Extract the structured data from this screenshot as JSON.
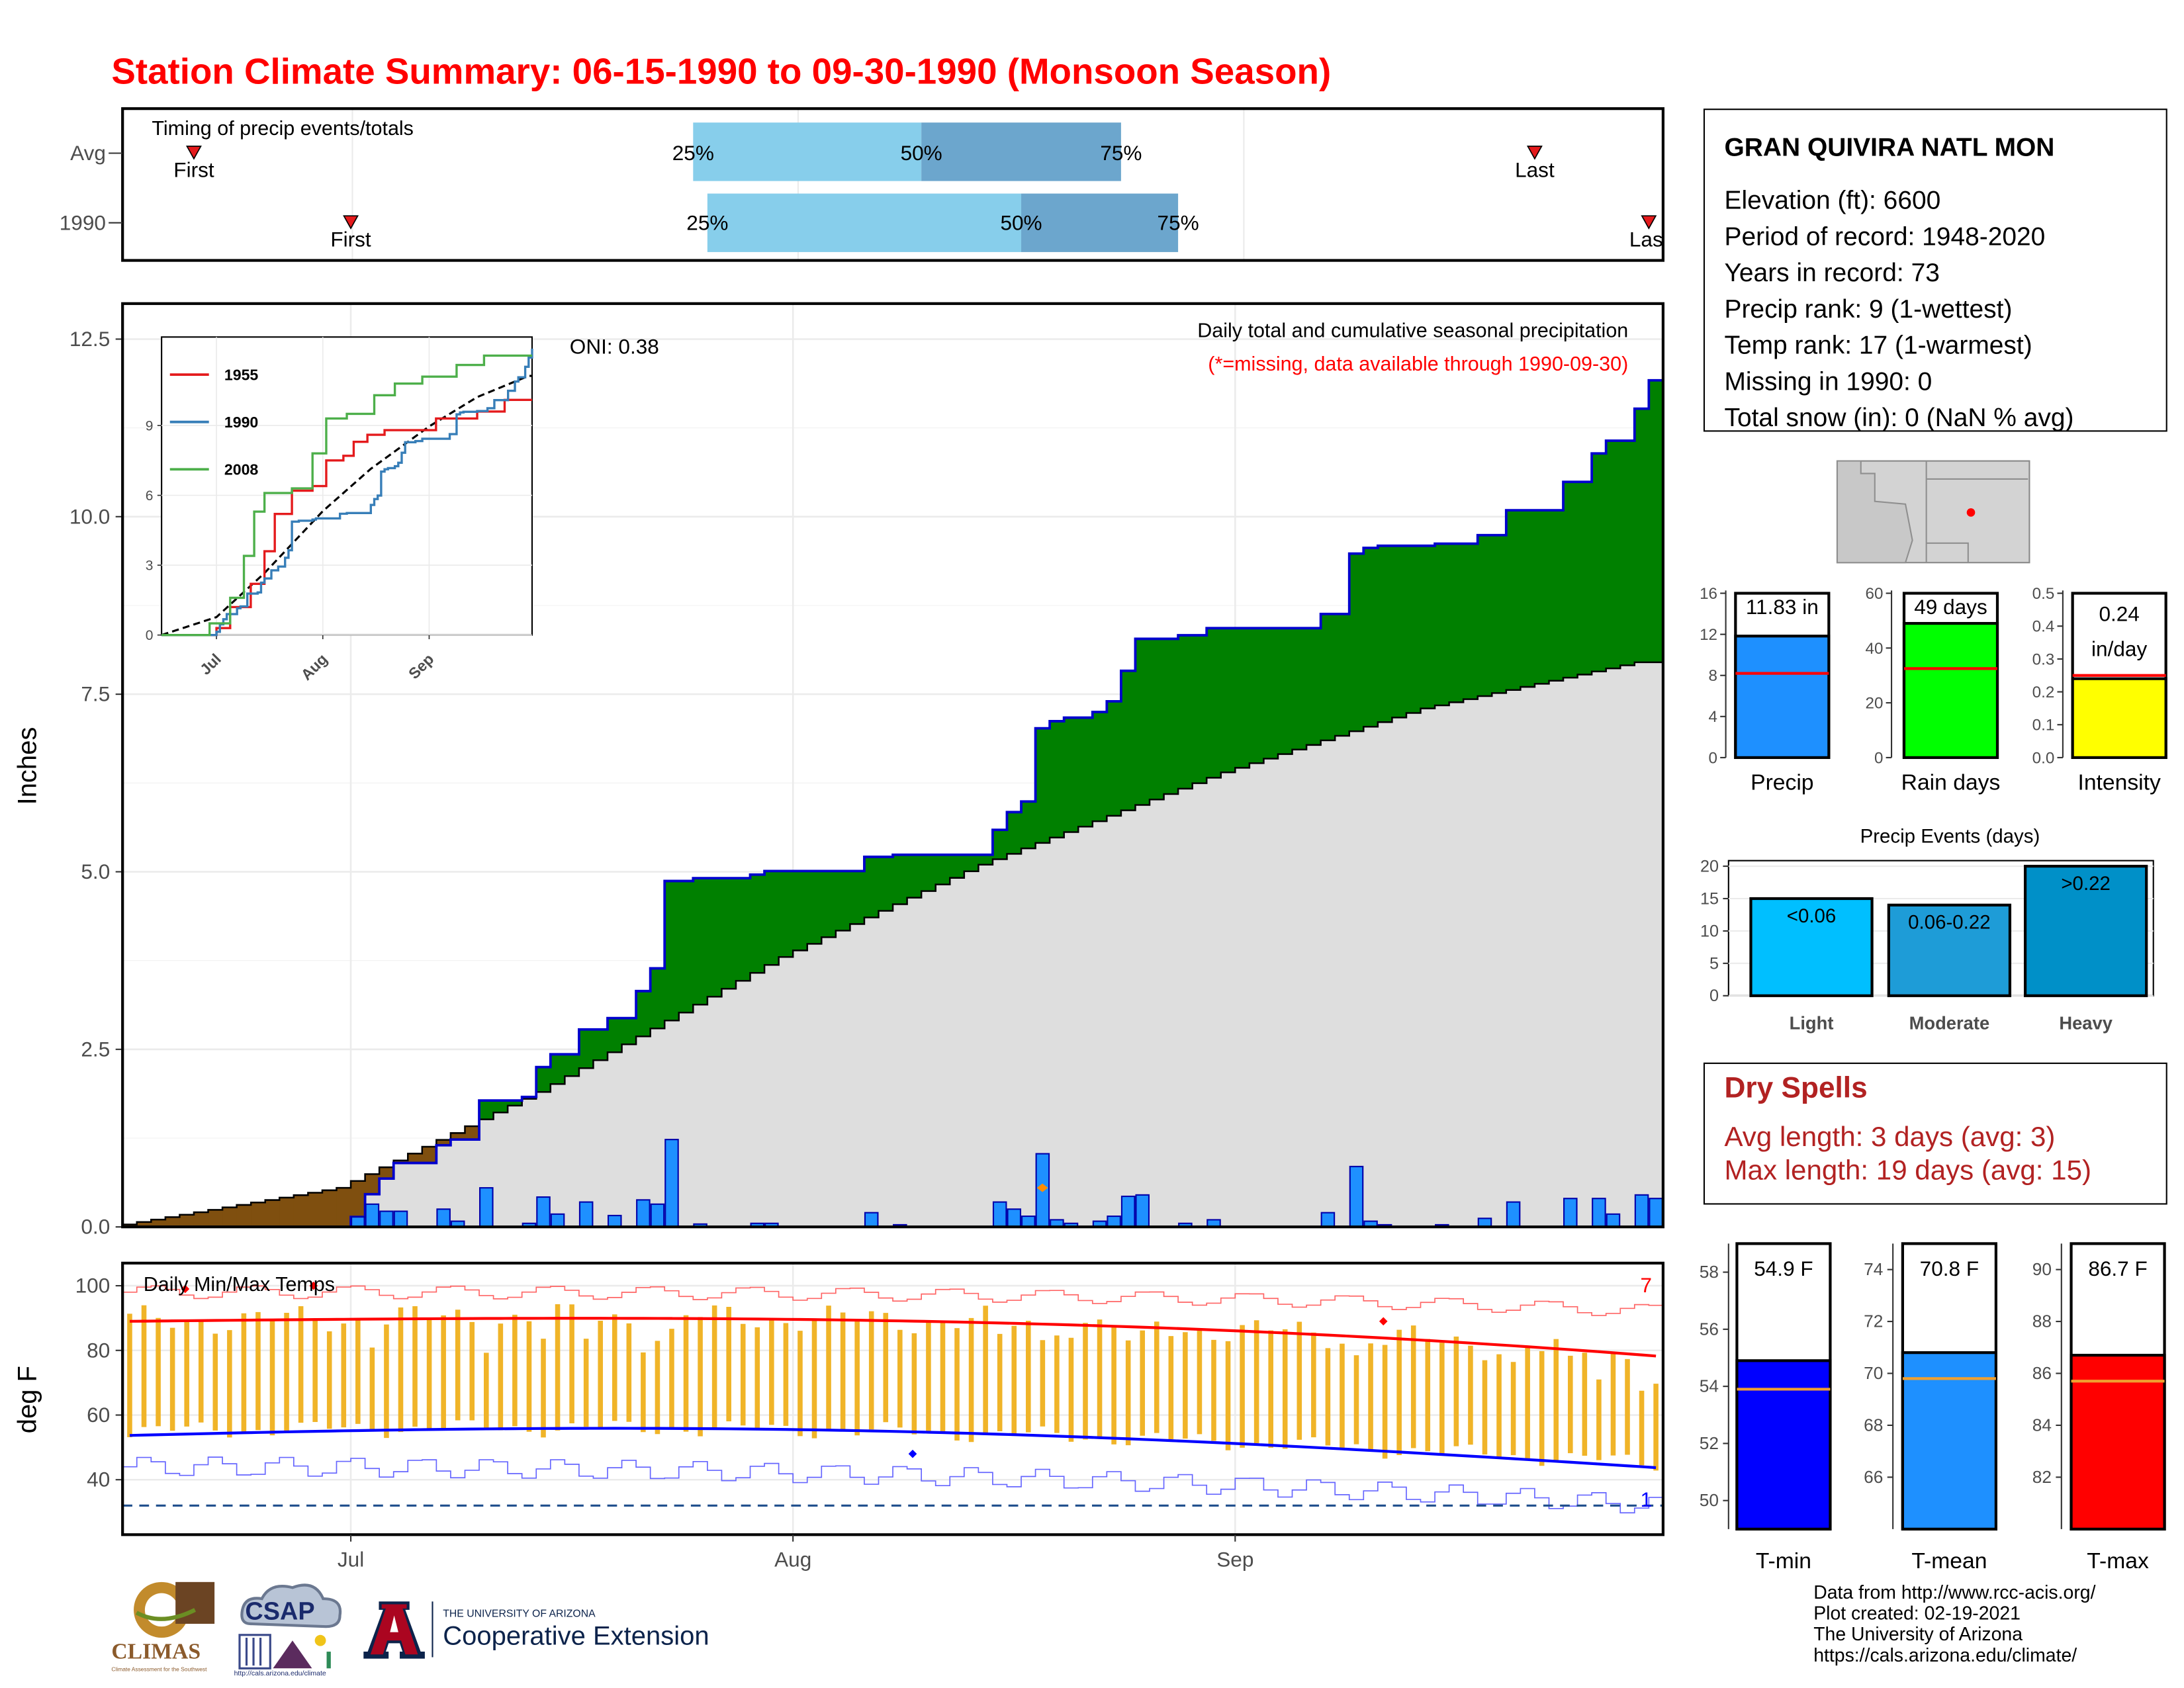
{
  "header": {
    "title": "Station Climate Summary: 06-15-1990 to 09-30-1990 (Monsoon Season)"
  },
  "colors": {
    "title_red": "#ff0000",
    "precip_green": "#008000",
    "precip_brown": "#7f4f0f",
    "normal_gray": "#dedede",
    "bar_blue": "#1e90ff",
    "temp_bar": "#f0b428",
    "dry_red": "#b22222"
  },
  "timing": {
    "panel_title": "Timing of precip events/totals",
    "rows": [
      "Avg",
      "1990"
    ],
    "avg": {
      "first_label": "First",
      "last_label": "Last",
      "first_date": "1990-06-20",
      "last_date": "1990-09-22",
      "q25": "1990-07-25",
      "q50": "1990-08-10",
      "q75": "1990-08-24"
    },
    "y1990": {
      "first_label": "First",
      "last_label": "Last",
      "first_date": "1990-07-01",
      "last_date": "1990-09-30",
      "q25": "1990-07-26",
      "q50": "1990-08-17",
      "q75": "1990-08-28"
    },
    "pct_labels": [
      "25%",
      "50%",
      "75%"
    ]
  },
  "precip_panel": {
    "ylabel": "Inches",
    "subtitle": "Daily total and cumulative seasonal precipitation",
    "missing_note": "(*=missing, data available through 1990-09-30)",
    "oni_label": "ONI: 0.38"
  },
  "temp_panel": {
    "title": "Daily Min/Max Temps",
    "ylabel": "deg F",
    "record_count_high": "7",
    "record_count_low": "1"
  },
  "inset": {
    "legend": [
      "1955",
      "1990",
      "2008"
    ],
    "legend_colors": [
      "#e41a1c",
      "#377eb8",
      "#4daf4a"
    ],
    "x_ticks": [
      "Jul",
      "Aug",
      "Sep"
    ],
    "y_ticks": [
      "0",
      "3",
      "6",
      "9"
    ]
  },
  "station": {
    "name": "GRAN QUIVIRA NATL MON",
    "lines": [
      "Elevation (ft): 6600",
      "Period of record: 1948-2020",
      "Years in record: 73",
      "Precip rank: 9 (1-wettest)",
      "Temp rank: 17 (1-warmest)",
      "Missing in 1990: 0",
      "Total snow (in): 0 (NaN % avg)"
    ]
  },
  "summary_bars": {
    "precip": {
      "label": "Precip",
      "value_text": "11.83 in",
      "value": 11.83,
      "avg": 8.2,
      "ymax": 16,
      "ticks": [
        "0",
        "4",
        "8",
        "12",
        "16"
      ]
    },
    "rain_days": {
      "label": "Rain days",
      "value_text": "49 days",
      "value": 49,
      "avg": 32.5,
      "ymax": 60,
      "ticks": [
        "0",
        "20",
        "40",
        "60"
      ]
    },
    "intensity": {
      "label": "Intensity",
      "value_text": "0.24 in/day",
      "value_line1": "0.24",
      "value_line2": "in/day",
      "value": 0.24,
      "avg": 0.25,
      "ymax": 0.5,
      "ticks": [
        "0.0",
        "0.1",
        "0.2",
        "0.3",
        "0.4",
        "0.5"
      ]
    }
  },
  "events": {
    "title": "Precip Events (days)",
    "categories": [
      "Light",
      "Moderate",
      "Heavy"
    ],
    "bar_labels": [
      "<0.06",
      "0.06-0.22",
      ">0.22"
    ],
    "values": [
      15,
      14,
      20
    ],
    "ymax": 20,
    "ticks": [
      "0",
      "5",
      "10",
      "15",
      "20"
    ]
  },
  "dry_spells": {
    "title": "Dry Spells",
    "avg_line": "Avg length: 3 days (avg: 3)",
    "max_line": "Max length: 19 days (avg: 15)"
  },
  "temp_bars": {
    "tmin": {
      "label": "T-min",
      "value_text": "54.9 F",
      "value": 54.9,
      "avg": 53.9,
      "ymin": 49,
      "ymax": 59,
      "ticks": [
        "50",
        "52",
        "54",
        "56",
        "58"
      ]
    },
    "tmean": {
      "label": "T-mean",
      "value_text": "70.8 F",
      "value": 70.8,
      "avg": 69.8,
      "ymin": 64,
      "ymax": 75,
      "ticks": [
        "66",
        "68",
        "70",
        "72",
        "74"
      ]
    },
    "tmax": {
      "label": "T-max",
      "value_text": "86.7 F",
      "value": 86.7,
      "avg": 85.7,
      "ymin": 80,
      "ymax": 91,
      "ticks": [
        "82",
        "84",
        "86",
        "88",
        "90"
      ]
    }
  },
  "footer": {
    "lines": [
      "Data from http://www.rcc-acis.org/",
      "Plot created: 02-19-2021",
      "The University of Arizona",
      "https://cals.arizona.edu/climate/"
    ],
    "logos": {
      "climas": "CLIMAS",
      "climas_sub": "Climate Assessment for the Southwest",
      "csap": "CSAP",
      "csap_url": "http://cals.arizona.edu/climate",
      "ua_small": "THE UNIVERSITY OF ARIZONA",
      "ua_big": "Cooperative Extension"
    }
  },
  "chart_data": {
    "type": "area",
    "title": "Station Climate Summary: 06-15-1990 to 09-30-1990 (Monsoon Season)",
    "xlabel": "",
    "ylabel": "Inches",
    "x_ticks": [
      "Jul",
      "Aug",
      "Sep"
    ],
    "x_range": [
      "1990-06-15",
      "1990-09-30"
    ],
    "ylim": [
      0,
      13
    ],
    "y_ticks": [
      "0.0",
      "2.5",
      "5.0",
      "7.5",
      "10.0",
      "12.5"
    ],
    "grid": true,
    "daily_precip_1990": [
      {
        "date": "1990-07-01",
        "in": 0.14
      },
      {
        "date": "1990-07-02",
        "in": 0.32
      },
      {
        "date": "1990-07-03",
        "in": 0.22
      },
      {
        "date": "1990-07-04",
        "in": 0.22
      },
      {
        "date": "1990-07-07",
        "in": 0.25
      },
      {
        "date": "1990-07-08",
        "in": 0.08
      },
      {
        "date": "1990-07-10",
        "in": 0.55
      },
      {
        "date": "1990-07-13",
        "in": 0.05
      },
      {
        "date": "1990-07-14",
        "in": 0.42
      },
      {
        "date": "1990-07-15",
        "in": 0.18
      },
      {
        "date": "1990-07-17",
        "in": 0.35
      },
      {
        "date": "1990-07-19",
        "in": 0.16
      },
      {
        "date": "1990-07-21",
        "in": 0.38
      },
      {
        "date": "1990-07-22",
        "in": 0.32
      },
      {
        "date": "1990-07-23",
        "in": 1.23
      },
      {
        "date": "1990-07-25",
        "in": 0.04
      },
      {
        "date": "1990-07-29",
        "in": 0.05
      },
      {
        "date": "1990-07-30",
        "in": 0.05
      },
      {
        "date": "1990-08-06",
        "in": 0.2
      },
      {
        "date": "1990-08-08",
        "in": 0.03
      },
      {
        "date": "1990-08-15",
        "in": 0.35
      },
      {
        "date": "1990-08-16",
        "in": 0.25
      },
      {
        "date": "1990-08-17",
        "in": 0.15
      },
      {
        "date": "1990-08-18",
        "in": 1.03
      },
      {
        "date": "1990-08-19",
        "in": 0.1
      },
      {
        "date": "1990-08-20",
        "in": 0.05
      },
      {
        "date": "1990-08-22",
        "in": 0.08
      },
      {
        "date": "1990-08-23",
        "in": 0.15
      },
      {
        "date": "1990-08-24",
        "in": 0.43
      },
      {
        "date": "1990-08-25",
        "in": 0.45
      },
      {
        "date": "1990-08-28",
        "in": 0.05
      },
      {
        "date": "1990-08-30",
        "in": 0.1
      },
      {
        "date": "1990-09-07",
        "in": 0.2
      },
      {
        "date": "1990-09-09",
        "in": 0.85
      },
      {
        "date": "1990-09-10",
        "in": 0.08
      },
      {
        "date": "1990-09-11",
        "in": 0.03
      },
      {
        "date": "1990-09-15",
        "in": 0.03
      },
      {
        "date": "1990-09-18",
        "in": 0.12
      },
      {
        "date": "1990-09-20",
        "in": 0.35
      },
      {
        "date": "1990-09-24",
        "in": 0.4
      },
      {
        "date": "1990-09-26",
        "in": 0.4
      },
      {
        "date": "1990-09-27",
        "in": 0.18
      },
      {
        "date": "1990-09-29",
        "in": 0.45
      },
      {
        "date": "1990-09-30",
        "in": 0.4
      }
    ],
    "series": [
      {
        "name": "1990 cumulative",
        "x": [
          "1990-06-15",
          "1990-07-01",
          "1990-07-11",
          "1990-07-18",
          "1990-07-23",
          "1990-07-31",
          "1990-08-06",
          "1990-08-18",
          "1990-08-25",
          "1990-09-09",
          "1990-09-24",
          "1990-09-30"
        ],
        "values": [
          0,
          0.14,
          1.45,
          2.23,
          4.48,
          4.68,
          4.93,
          6.8,
          8.2,
          9.35,
          10.9,
          11.83
        ]
      },
      {
        "name": "Normal cumulative",
        "x": [
          "1990-06-15",
          "1990-07-01",
          "1990-07-15",
          "1990-08-01",
          "1990-08-15",
          "1990-09-01",
          "1990-09-15",
          "1990-09-30"
        ],
        "values": [
          0,
          0.55,
          1.9,
          3.8,
          5.1,
          6.4,
          7.3,
          7.95
        ]
      }
    ]
  }
}
